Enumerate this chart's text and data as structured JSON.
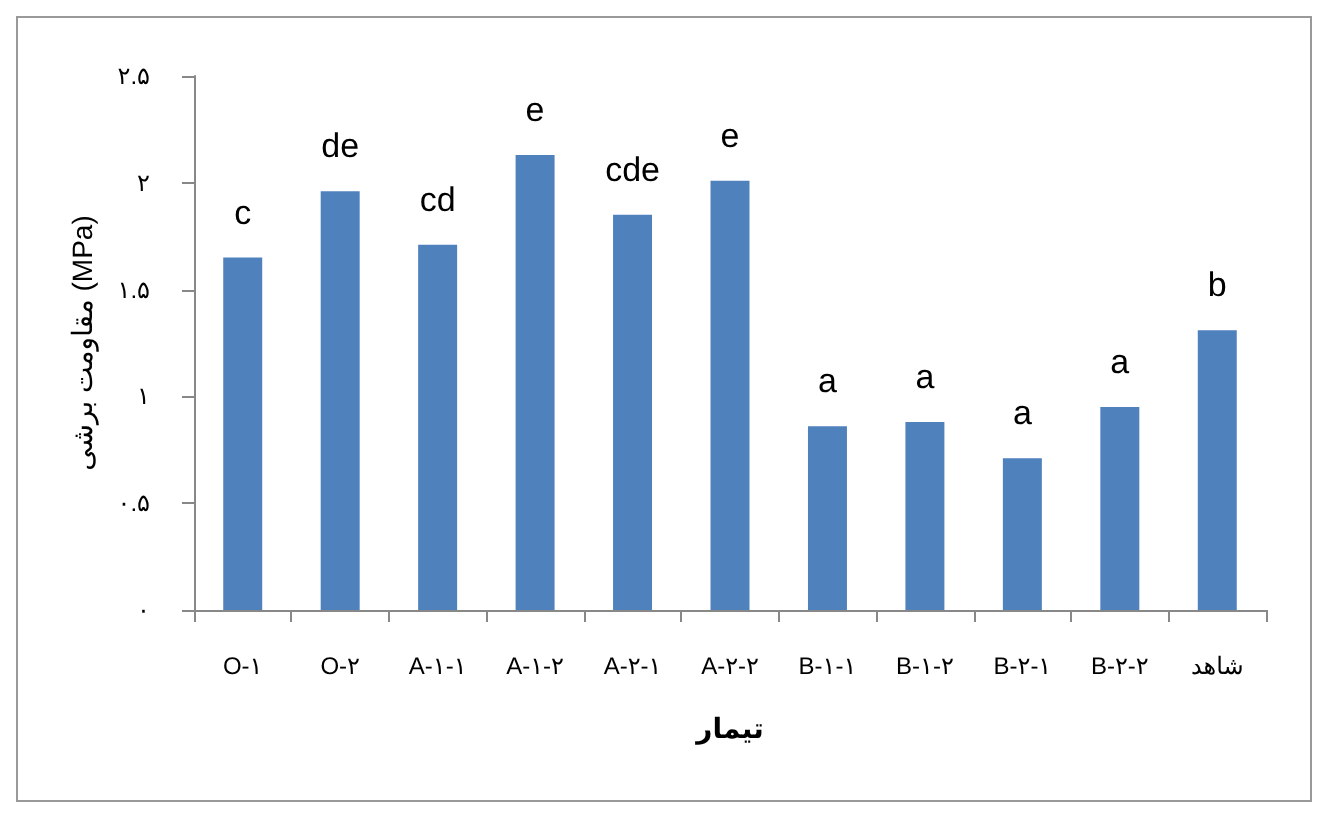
{
  "chart_data": {
    "type": "bar",
    "xlabel": "تیمار",
    "ylabel": "مقاومت برشی (MPa)",
    "categories": [
      "O-۱",
      "O-۲",
      "A-۱-۱",
      "A-۱-۲",
      "A-۲-۱",
      "A-۲-۲",
      "B-۱-۱",
      "B-۱-۲",
      "B-۲-۱",
      "B-۲-۲",
      "شاهد"
    ],
    "values": [
      1.65,
      1.96,
      1.71,
      2.13,
      1.85,
      2.01,
      0.86,
      0.88,
      0.71,
      0.95,
      1.31
    ],
    "color": "#4f81bd",
    "ylim": [
      0,
      2.5
    ],
    "yticks": [
      {
        "value": 0,
        "label": "۰"
      },
      {
        "value": 0.5,
        "label": "۰.۵"
      },
      {
        "value": 1,
        "label": "۱"
      },
      {
        "value": 1.5,
        "label": "۱.۵"
      },
      {
        "value": 2,
        "label": "۲"
      },
      {
        "value": 2.5,
        "label": "۲.۵"
      }
    ],
    "grid": false,
    "annotations": [
      {
        "text": "c",
        "x": "O-۱",
        "y": 1.65
      },
      {
        "text": "de",
        "x": "O-۲",
        "y": 1.96
      },
      {
        "text": "cd",
        "x": "A-۱-۱",
        "y": 1.71
      },
      {
        "text": "e",
        "x": "A-۱-۲",
        "y": 2.13
      },
      {
        "text": "cde",
        "x": "A-۲-۱",
        "y": 1.85
      },
      {
        "text": "e",
        "x": "A-۲-۲",
        "y": 2.01
      },
      {
        "text": "a",
        "x": "B-۱-۱",
        "y": 0.86
      },
      {
        "text": "a",
        "x": "B-۱-۲",
        "y": 0.88
      },
      {
        "text": "a",
        "x": "B-۲-۱",
        "y": 0.71
      },
      {
        "text": "a",
        "x": "B-۲-۲",
        "y": 0.95
      },
      {
        "text": "b",
        "x": "شاهد",
        "y": 1.31
      }
    ]
  }
}
